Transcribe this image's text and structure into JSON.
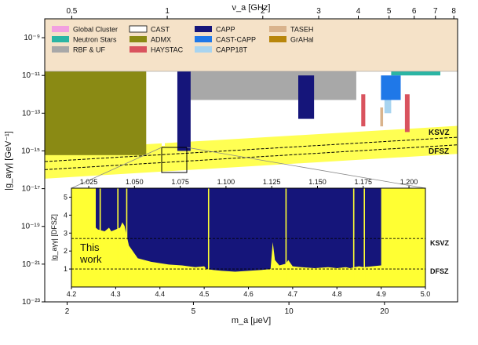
{
  "chart_data": {
    "type": "area",
    "title": "",
    "xlabel": "m_a [μeV]",
    "x2label": "ν_a [GHz]",
    "ylabel": "|g_aγγ| [GeV⁻¹]",
    "x_scale": "log",
    "y_scale": "log",
    "xlim": [
      1.7,
      34
    ],
    "ylim": [
      1e-23,
      1e-08
    ],
    "x_ticks": [
      {
        "v": 2,
        "label": "2"
      },
      {
        "v": 5,
        "label": "5"
      },
      {
        "v": 10,
        "label": "10"
      },
      {
        "v": 20,
        "label": "20"
      }
    ],
    "x2_ticks": [
      {
        "v": 0.5,
        "label": "0.5"
      },
      {
        "v": 1,
        "label": "1"
      },
      {
        "v": 2,
        "label": "2"
      },
      {
        "v": 3,
        "label": "3"
      },
      {
        "v": 4,
        "label": "4"
      },
      {
        "v": 5,
        "label": "5"
      },
      {
        "v": 6,
        "label": "6"
      },
      {
        "v": 7,
        "label": "7"
      },
      {
        "v": 8,
        "label": "8"
      }
    ],
    "y_ticks": [
      {
        "exp": -9,
        "label": "10⁻⁹"
      },
      {
        "exp": -11,
        "label": "10⁻¹¹"
      },
      {
        "exp": -13,
        "label": "10⁻¹³"
      },
      {
        "exp": -15,
        "label": "10⁻¹⁵"
      },
      {
        "exp": -17,
        "label": "10⁻¹⁷"
      },
      {
        "exp": -19,
        "label": "10⁻¹⁹"
      },
      {
        "exp": -21,
        "label": "10⁻²¹"
      },
      {
        "exp": -23,
        "label": "10⁻²³"
      }
    ],
    "legend_position": "top",
    "legend": [
      {
        "name": "Global Cluster",
        "color": "#f2a0e0"
      },
      {
        "name": "Neutron Stars",
        "color": "#2bb5a4"
      },
      {
        "name": "RBF & UF",
        "color": "#a8a8a8"
      },
      {
        "name": "CAST",
        "color": "#ffffff"
      },
      {
        "name": "ADMX",
        "color": "#8a8a14"
      },
      {
        "name": "HAYSTAC",
        "color": "#d9535e"
      },
      {
        "name": "CAPP",
        "color": "#15157a"
      },
      {
        "name": "CAST-CAPP",
        "color": "#1f78e8"
      },
      {
        "name": "CAPP18T",
        "color": "#a8d4f0"
      },
      {
        "name": "TASEH",
        "color": "#d9b38c"
      },
      {
        "name": "GrAHal",
        "color": "#b8860b"
      }
    ],
    "model_lines": [
      {
        "name": "KSVZ",
        "g_at_2ueV": 3.2e-16,
        "g_at_34ueV": 5.3e-15
      },
      {
        "name": "DFSZ",
        "g_at_2ueV": 1.2e-16,
        "g_at_34ueV": 2.1e-15
      }
    ],
    "series": [
      {
        "name": "ADMX",
        "mass_range": [
          1.7,
          3.55
        ],
        "g_upper": 1e-10,
        "g_lower": 6e-16
      },
      {
        "name": "CAPP",
        "mass_range": [
          4.45,
          4.9
        ],
        "g_upper": 3e-11,
        "g_lower": 1e-15
      },
      {
        "name": "CAPP",
        "mass_range": [
          10.7,
          12.0
        ],
        "g_upper": 1e-11,
        "g_lower": 5e-14
      },
      {
        "name": "CAST-CAPP",
        "mass_range": [
          19.5,
          22.5
        ],
        "g_upper": 1e-11,
        "g_lower": 5e-13
      },
      {
        "name": "HAYSTAC",
        "mass_range": [
          16.9,
          17.4
        ],
        "g_upper": 1e-12,
        "g_lower": 2e-14
      },
      {
        "name": "HAYSTAC",
        "mass_range": [
          23.2,
          24.0
        ],
        "g_upper": 1e-12,
        "g_lower": 1e-14
      },
      {
        "name": "TASEH",
        "mass_range": [
          19.4,
          19.8
        ],
        "g_upper": 2e-13,
        "g_lower": 2e-14
      },
      {
        "name": "CAPP18T",
        "mass_range": [
          20.0,
          21.0
        ],
        "g_upper": 1e-12,
        "g_lower": 1e-13
      },
      {
        "name": "RBF & UF",
        "mass_range": [
          4.5,
          16.3
        ],
        "g_upper": 3e-11,
        "g_lower": 5e-13
      },
      {
        "name": "Neutron Stars",
        "mass_range": [
          21.0,
          30.0
        ],
        "g_upper": 1e-10,
        "g_lower": 1e-11
      },
      {
        "name": "Global Cluster",
        "mass_range": [
          1.7,
          34.0
        ],
        "g_upper": 8e-11,
        "g_lower": 6e-11
      }
    ],
    "inset": {
      "annotation": "This work",
      "xlabel": "",
      "ylabel": "|g_aγγ| [DFSZ]",
      "xlim": [
        4.2,
        5.0
      ],
      "ylim": [
        0,
        5.5
      ],
      "x_ticks": [
        4.2,
        4.3,
        4.4,
        4.5,
        4.6,
        4.7,
        4.8,
        4.9,
        5.0
      ],
      "x2label": "ν_a [GHz]",
      "x2_ticks": [
        1.025,
        1.05,
        1.075,
        1.1,
        1.125,
        1.15,
        1.175,
        1.2
      ],
      "y_ticks": [
        1,
        2,
        3,
        4,
        5
      ],
      "ksvz_value": 2.7,
      "dfsz_value": 1.0,
      "exclusion": {
        "x": [
          4.255,
          4.26,
          4.275,
          4.28,
          4.285,
          4.29,
          4.31,
          4.315,
          4.32,
          4.33,
          4.35,
          4.38,
          4.42,
          4.45,
          4.48,
          4.5,
          4.505,
          4.52,
          4.54,
          4.57,
          4.6,
          4.63,
          4.65,
          4.655,
          4.66,
          4.67,
          4.685,
          4.69,
          4.7,
          4.72,
          4.75,
          4.78,
          4.8,
          4.82,
          4.83,
          4.84,
          4.85,
          4.86,
          4.88,
          4.9
        ],
        "y": [
          3.3,
          3.2,
          3.1,
          3.2,
          3.3,
          3.1,
          3.3,
          3.6,
          3.4,
          2.3,
          1.6,
          1.4,
          1.25,
          1.2,
          1.1,
          1.15,
          1.0,
          0.95,
          0.9,
          0.85,
          0.9,
          0.95,
          1.0,
          2.5,
          1.5,
          1.2,
          1.3,
          1.5,
          1.15,
          1.1,
          1.05,
          1.1,
          1.05,
          1.1,
          1.05,
          1.1,
          1.15,
          1.1,
          1.15,
          1.2
        ]
      },
      "gaps": [
        4.265,
        4.305,
        4.325,
        4.51,
        4.685,
        4.838,
        4.862
      ]
    }
  }
}
